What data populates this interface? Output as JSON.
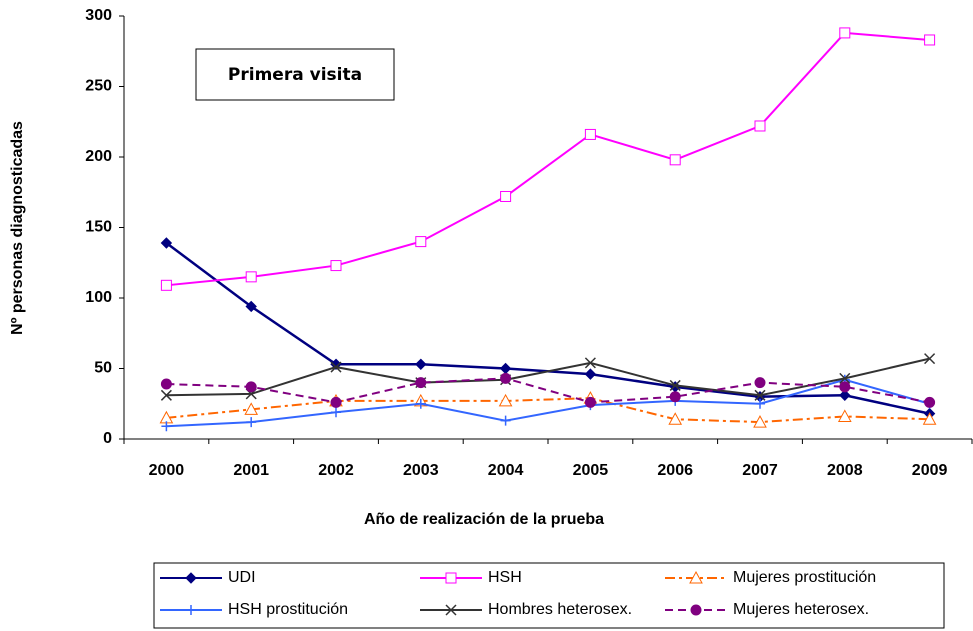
{
  "chart_data": {
    "type": "line",
    "annotation": "Primera visita",
    "x_label": "Año de realización de la prueba",
    "y_label": "Nº personas diagnosticadas",
    "categories": [
      "2000",
      "2001",
      "2002",
      "2003",
      "2004",
      "2005",
      "2006",
      "2007",
      "2008",
      "2009"
    ],
    "ylim": [
      0,
      300
    ],
    "yticks": [
      0,
      50,
      100,
      150,
      200,
      250,
      300
    ],
    "grid": false,
    "legend": "bottom",
    "series": [
      {
        "name": "UDI",
        "color": "#000080",
        "marker": "diamond",
        "dash": "solid",
        "values": [
          139,
          94,
          53,
          53,
          50,
          46,
          37,
          30,
          31,
          18
        ]
      },
      {
        "name": "HSH",
        "color": "#ff00ff",
        "marker": "square",
        "dash": "solid",
        "values": [
          109,
          115,
          123,
          140,
          172,
          216,
          198,
          222,
          288,
          283
        ]
      },
      {
        "name": "Mujeres prostitución",
        "color": "#ff6600",
        "marker": "triangle",
        "dash": "dashdot",
        "values": [
          15,
          21,
          27,
          27,
          27,
          29,
          14,
          12,
          16,
          14
        ]
      },
      {
        "name": "HSH prostitución",
        "color": "#3366ff",
        "marker": "plus",
        "dash": "solid",
        "values": [
          9,
          12,
          19,
          25,
          13,
          24,
          27,
          25,
          42,
          25
        ]
      },
      {
        "name": "Hombres heterosex.",
        "color": "#333333",
        "marker": "x",
        "dash": "solid",
        "values": [
          31,
          32,
          51,
          40,
          42,
          54,
          38,
          31,
          43,
          57
        ]
      },
      {
        "name": "Mujeres heterosex.",
        "color": "#800080",
        "marker": "circle",
        "dash": "dashed",
        "values": [
          39,
          37,
          26,
          40,
          43,
          26,
          30,
          40,
          37,
          26
        ]
      }
    ]
  }
}
